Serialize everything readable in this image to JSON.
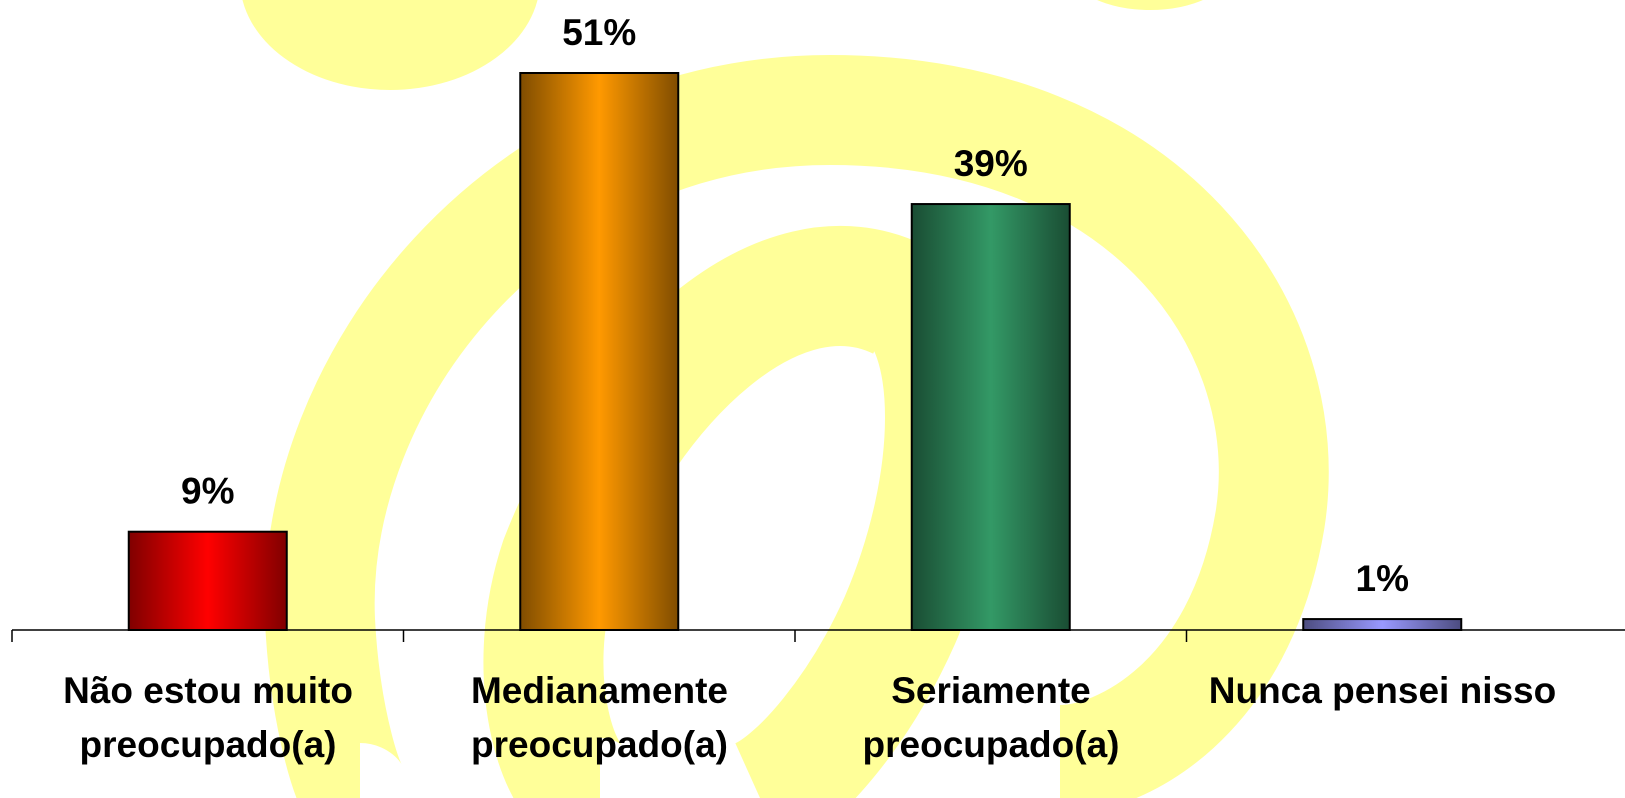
{
  "chart_data": {
    "type": "bar",
    "categories": [
      "Não estou muito preocupado(a)",
      "Medianamente preocupado(a)",
      "Seriamente preocupado(a)",
      "Nunca pensei nisso"
    ],
    "values": [
      9,
      51,
      39,
      1
    ],
    "value_labels": [
      "9%",
      "51%",
      "39%",
      "1%"
    ],
    "colors": [
      "#ff0000",
      "#ff9900",
      "#339966",
      "#9999ff"
    ]
  }
}
